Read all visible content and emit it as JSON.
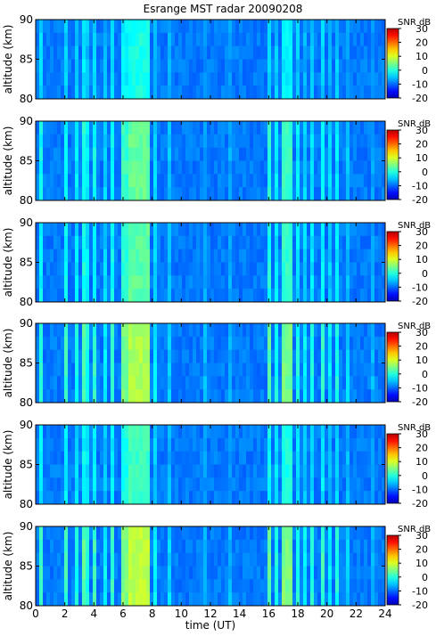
{
  "title": "Esrange MST radar 20090208",
  "chart_data": [
    {
      "type": "heatmap",
      "ylabel": "altitude (km)",
      "xlim": [
        0,
        24
      ],
      "ylim": [
        80,
        90
      ],
      "yticks": [
        80,
        85,
        90
      ],
      "colorbar_label": "SNR dB",
      "clim": [
        -20,
        30
      ],
      "cticks": [
        30,
        20,
        10,
        0,
        -10,
        -20
      ],
      "intensity": 0.55
    },
    {
      "type": "heatmap",
      "ylabel": "altitude (km)",
      "xlim": [
        0,
        24
      ],
      "ylim": [
        80,
        90
      ],
      "yticks": [
        80,
        85,
        90
      ],
      "colorbar_label": "SNR dB",
      "clim": [
        -20,
        30
      ],
      "cticks": [
        30,
        20,
        10,
        0,
        -10,
        -20
      ],
      "intensity": 0.85
    },
    {
      "type": "heatmap",
      "ylabel": "altitude (km)",
      "xlim": [
        0,
        24
      ],
      "ylim": [
        80,
        90
      ],
      "yticks": [
        80,
        85,
        90
      ],
      "colorbar_label": "SNR dB",
      "clim": [
        -20,
        30
      ],
      "cticks": [
        30,
        20,
        10,
        0,
        -10,
        -20
      ],
      "intensity": 0.8
    },
    {
      "type": "heatmap",
      "ylabel": "altitude (km)",
      "xlim": [
        0,
        24
      ],
      "ylim": [
        80,
        90
      ],
      "yticks": [
        80,
        85,
        90
      ],
      "colorbar_label": "SNR dB",
      "clim": [
        -20,
        30
      ],
      "cticks": [
        30,
        20,
        10,
        0,
        -10,
        -20
      ],
      "intensity": 1.1
    },
    {
      "type": "heatmap",
      "ylabel": "altitude (km)",
      "xlim": [
        0,
        24
      ],
      "ylim": [
        80,
        90
      ],
      "yticks": [
        80,
        85,
        90
      ],
      "colorbar_label": "SNR dB",
      "clim": [
        -20,
        30
      ],
      "cticks": [
        30,
        20,
        10,
        0,
        -10,
        -20
      ],
      "intensity": 0.7
    },
    {
      "type": "heatmap",
      "ylabel": "altitude (km)",
      "xlabel": "time (UT)",
      "xlim": [
        0,
        24
      ],
      "ylim": [
        80,
        90
      ],
      "yticks": [
        80,
        85,
        90
      ],
      "xticks": [
        0,
        2,
        4,
        6,
        8,
        10,
        12,
        14,
        16,
        18,
        20,
        22,
        24
      ],
      "colorbar_label": "SNR dB",
      "clim": [
        -20,
        30
      ],
      "cticks": [
        30,
        20,
        10,
        0,
        -10,
        -20
      ],
      "intensity": 1.15
    }
  ],
  "features": {
    "time_bands": [
      [
        0.2,
        0.4,
        6
      ],
      [
        0.9,
        1.1,
        4
      ],
      [
        1.9,
        2.2,
        6
      ],
      [
        2.7,
        2.9,
        5
      ],
      [
        3.1,
        3.4,
        7
      ],
      [
        3.5,
        3.75,
        5
      ],
      [
        3.85,
        4.1,
        6
      ],
      [
        4.6,
        4.8,
        4
      ],
      [
        5.2,
        5.5,
        6
      ],
      [
        5.9,
        6.4,
        8
      ],
      [
        6.4,
        7.9,
        10
      ],
      [
        8.0,
        8.3,
        4
      ],
      [
        9.1,
        9.3,
        3
      ],
      [
        10.2,
        10.4,
        3
      ],
      [
        11.5,
        11.7,
        2
      ],
      [
        13.2,
        13.4,
        2
      ],
      [
        15.8,
        16.1,
        7
      ],
      [
        16.3,
        16.6,
        5
      ],
      [
        16.9,
        17.6,
        8
      ],
      [
        17.9,
        18.1,
        5
      ],
      [
        18.3,
        18.5,
        4
      ],
      [
        18.8,
        19.1,
        5
      ],
      [
        19.5,
        19.9,
        6
      ],
      [
        20.1,
        20.3,
        4
      ],
      [
        20.6,
        20.9,
        5
      ],
      [
        21.3,
        21.5,
        3
      ],
      [
        22.2,
        22.4,
        3
      ],
      [
        23.1,
        23.3,
        2
      ]
    ]
  }
}
